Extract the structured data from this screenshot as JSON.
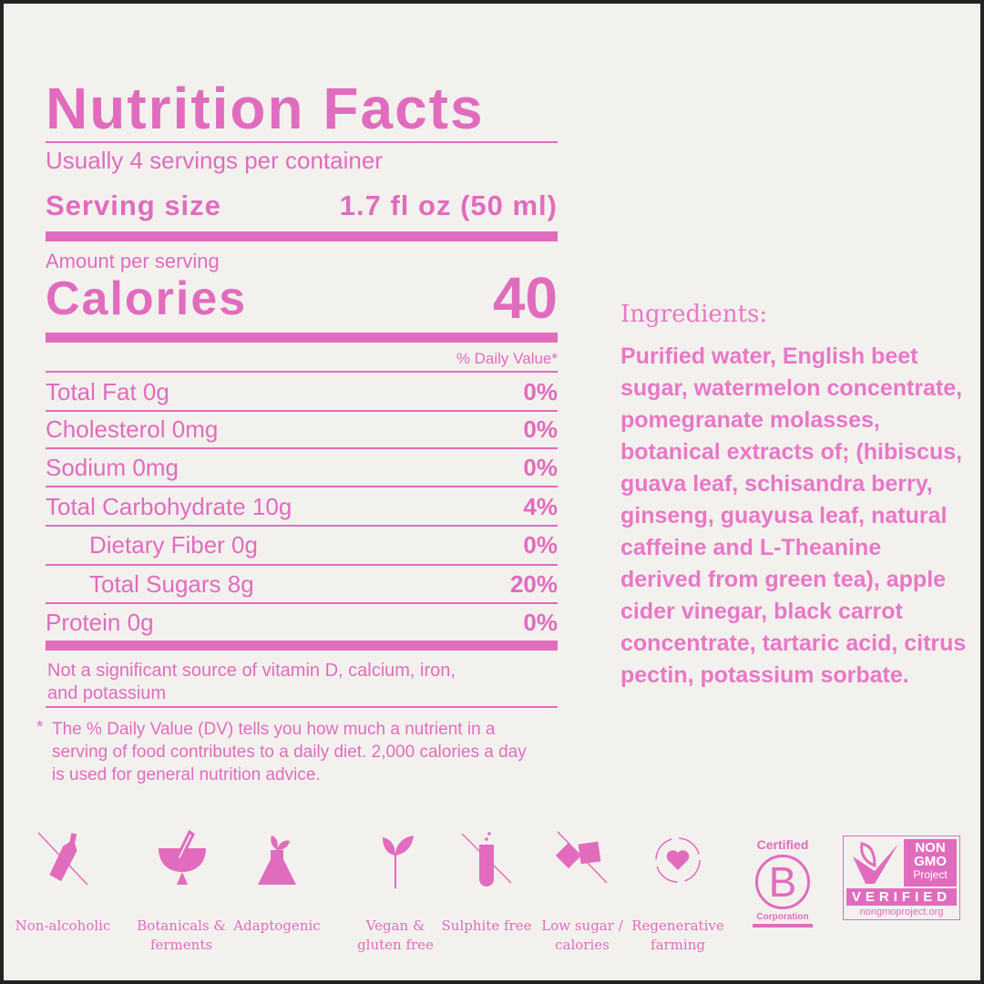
{
  "nutrition": {
    "title": "Nutrition Facts",
    "servings": "Usually 4 servings per container",
    "serving_size_label": "Serving size",
    "serving_size_value": "1.7 fl oz (50 ml)",
    "amount_per_serving": "Amount per serving",
    "calories_label": "Calories",
    "calories_value": "40",
    "dv_header": "% Daily Value*",
    "rows": [
      {
        "label": "Total Fat 0g",
        "pct": "0%"
      },
      {
        "label": "Cholesterol 0mg",
        "pct": "0%"
      },
      {
        "label": "Sodium 0mg",
        "pct": "0%"
      },
      {
        "label": "Total Carbohydrate 10g",
        "pct": "4%"
      },
      {
        "label": "Dietary Fiber 0g",
        "pct": "0%"
      },
      {
        "label": "Total Sugars 8g",
        "pct": "20%"
      },
      {
        "label": "Protein 0g",
        "pct": "0%"
      }
    ],
    "note": "Not a significant source of vitamin D, calcium, iron, and potassium",
    "footnote_star": "*",
    "footnote": "The % Daily Value (DV) tells you how much a nutrient in a serving of food contributes to a daily diet. 2,000 calories a day is used for general nutrition advice."
  },
  "ingredients": {
    "heading": "Ingredients:",
    "text": "Purified water, English beet sugar, watermelon concentrate, pomegranate molasses, botanical extracts of; (hibiscus, guava leaf, schisandra berry, ginseng, guayusa leaf, natural caffeine and L-Theanine derived from green tea), apple cider vinegar, black carrot concentrate, tartaric acid, citrus pectin, potassium sorbate."
  },
  "badges": [
    {
      "icon": "no-bottle-icon",
      "label": "Non-alcoholic"
    },
    {
      "icon": "mortar-pestle-icon",
      "label": "Botanicals & ferments"
    },
    {
      "icon": "flask-sprout-icon",
      "label": "Adaptogenic"
    },
    {
      "icon": "sprout-icon",
      "label": "Vegan & gluten free"
    },
    {
      "icon": "no-test-tube-icon",
      "label": "Sulphite free"
    },
    {
      "icon": "no-sugar-cubes-icon",
      "label": "Low sugar / calories"
    },
    {
      "icon": "recycle-heart-icon",
      "label": "Regenerative farming"
    }
  ],
  "bcorp": {
    "top": "Certified",
    "letter": "B",
    "bottom": "Corporation"
  },
  "nongmo": {
    "line1": "NON",
    "line2": "GMO",
    "line3": "Project",
    "verified": "VERIFIED",
    "url": "nongmoproject.org"
  },
  "colors": {
    "accent": "#e16cbe",
    "background": "#f3f1ee"
  }
}
